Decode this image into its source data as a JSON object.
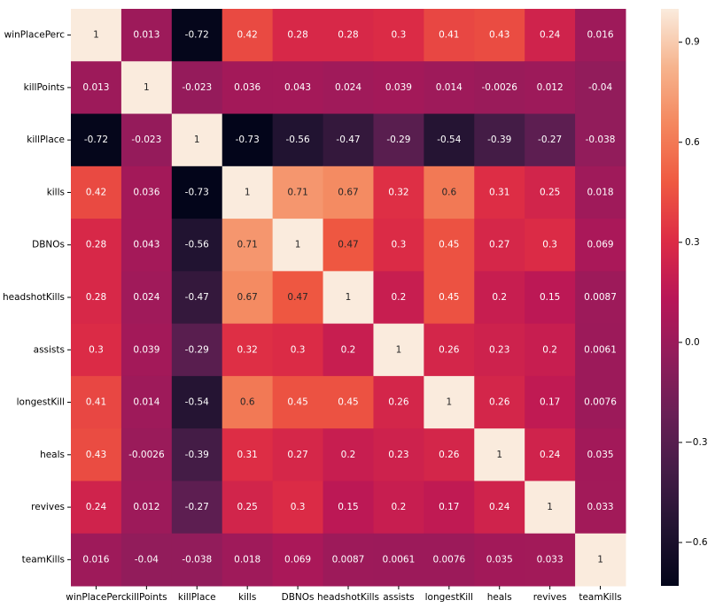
{
  "chart_data": {
    "type": "heatmap",
    "categories": [
      "winPlacePerc",
      "killPoints",
      "killPlace",
      "kills",
      "DBNOs",
      "headshotKills",
      "assists",
      "longestKill",
      "heals",
      "revives",
      "teamKills"
    ],
    "values": [
      [
        1,
        0.013,
        -0.72,
        0.42,
        0.28,
        0.28,
        0.3,
        0.41,
        0.43,
        0.24,
        0.016
      ],
      [
        0.013,
        1,
        -0.023,
        0.036,
        0.043,
        0.024,
        0.039,
        0.014,
        -0.0026,
        0.012,
        -0.04
      ],
      [
        -0.72,
        -0.023,
        1,
        -0.73,
        -0.56,
        -0.47,
        -0.29,
        -0.54,
        -0.39,
        -0.27,
        -0.038
      ],
      [
        0.42,
        0.036,
        -0.73,
        1,
        0.71,
        0.67,
        0.32,
        0.6,
        0.31,
        0.25,
        0.018
      ],
      [
        0.28,
        0.043,
        -0.56,
        0.71,
        1,
        0.47,
        0.3,
        0.45,
        0.27,
        0.3,
        0.069
      ],
      [
        0.28,
        0.024,
        -0.47,
        0.67,
        0.47,
        1,
        0.2,
        0.45,
        0.2,
        0.15,
        0.0087
      ],
      [
        0.3,
        0.039,
        -0.29,
        0.32,
        0.3,
        0.2,
        1,
        0.26,
        0.23,
        0.2,
        0.0061
      ],
      [
        0.41,
        0.014,
        -0.54,
        0.6,
        0.45,
        0.45,
        0.26,
        1,
        0.26,
        0.17,
        0.0076
      ],
      [
        0.43,
        -0.0026,
        -0.39,
        0.31,
        0.27,
        0.2,
        0.23,
        0.26,
        1,
        0.24,
        0.035
      ],
      [
        0.24,
        0.012,
        -0.27,
        0.25,
        0.3,
        0.15,
        0.2,
        0.17,
        0.24,
        1,
        0.033
      ],
      [
        0.016,
        -0.04,
        -0.038,
        0.018,
        0.069,
        0.0087,
        0.0061,
        0.0076,
        0.035,
        0.033,
        1
      ]
    ],
    "colormap": "rocket",
    "zlim": [
      -0.73,
      1
    ],
    "zticks": [
      {
        "value": -0.6,
        "label": "−0.6"
      },
      {
        "value": -0.3,
        "label": "−0.3"
      },
      {
        "value": 0,
        "label": "0.0"
      },
      0.3,
      0.6,
      0.9
    ]
  }
}
